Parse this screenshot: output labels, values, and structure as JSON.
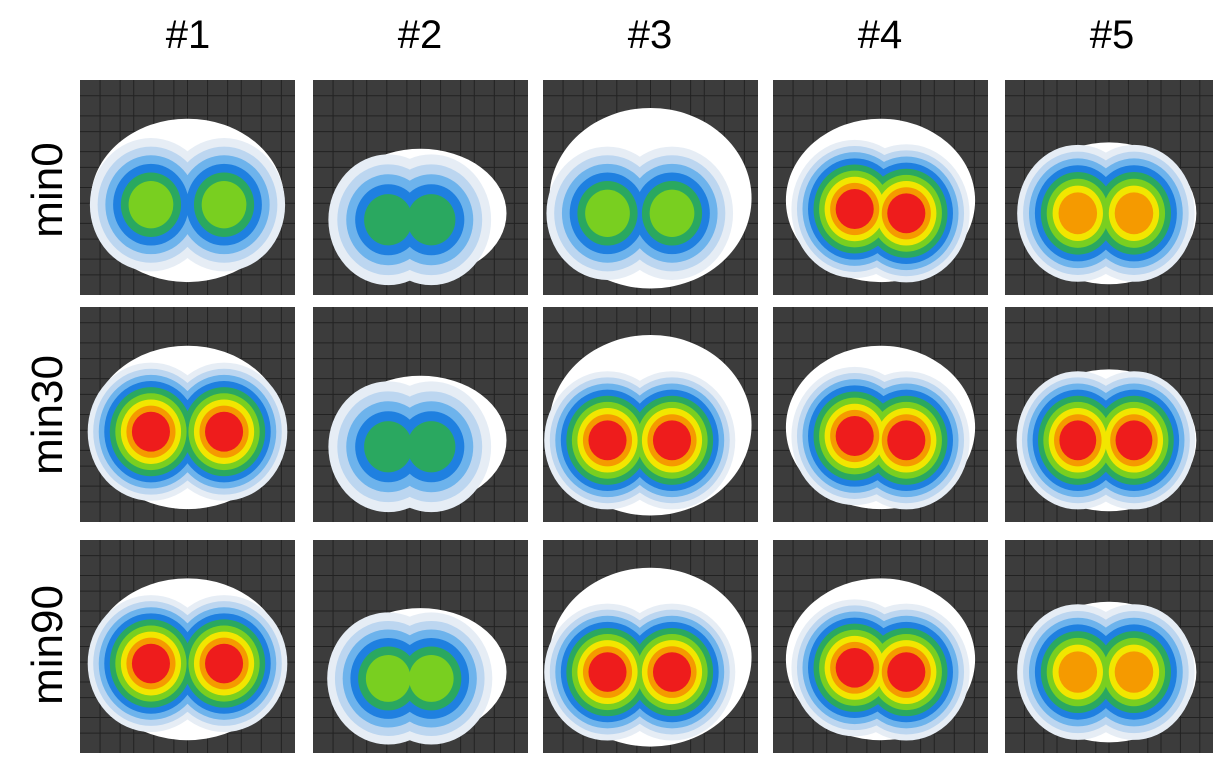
{
  "columns": [
    "#1",
    "#2",
    "#3",
    "#4",
    "#5"
  ],
  "rows": [
    "min0",
    "min30",
    "min90"
  ]
}
